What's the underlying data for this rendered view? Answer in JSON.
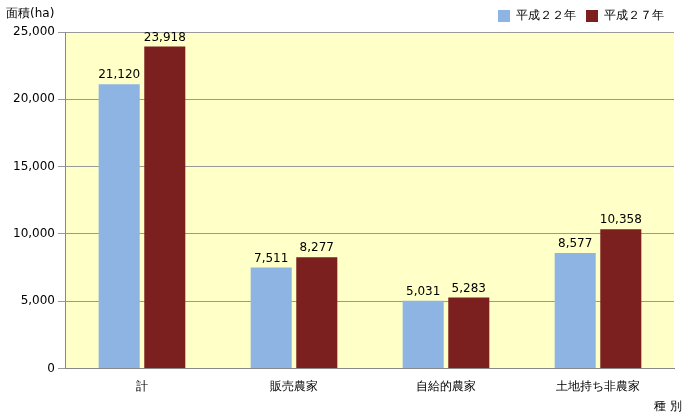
{
  "chart_data": {
    "type": "bar",
    "y_label": "面積(ha)",
    "x_label": "種 別",
    "categories": [
      "計",
      "販売農家",
      "自給的農家",
      "土地持ち非農家"
    ],
    "series": [
      {
        "name": "平成２２年",
        "color": "#8db4e2",
        "values": [
          21120,
          7511,
          5031,
          8577
        ],
        "value_labels": [
          "21,120",
          "7,511",
          "5,031",
          "8,577"
        ]
      },
      {
        "name": "平成２７年",
        "color": "#7b1f1f",
        "values": [
          23918,
          8277,
          5283,
          10358
        ],
        "value_labels": [
          "23,918",
          "8,277",
          "5,283",
          "10,358"
        ]
      }
    ],
    "ylim": [
      0,
      25000
    ],
    "yticks": [
      0,
      {
        "value": 5000,
        "label": "5,000"
      },
      {
        "value": 10000,
        "label": "10,000"
      },
      {
        "value": 15000,
        "label": "15,000"
      },
      {
        "value": 20000,
        "label": "20,000"
      },
      {
        "value": 25000,
        "label": "25,000"
      }
    ],
    "grid": true,
    "legend": "upper right",
    "data_labels": true
  }
}
